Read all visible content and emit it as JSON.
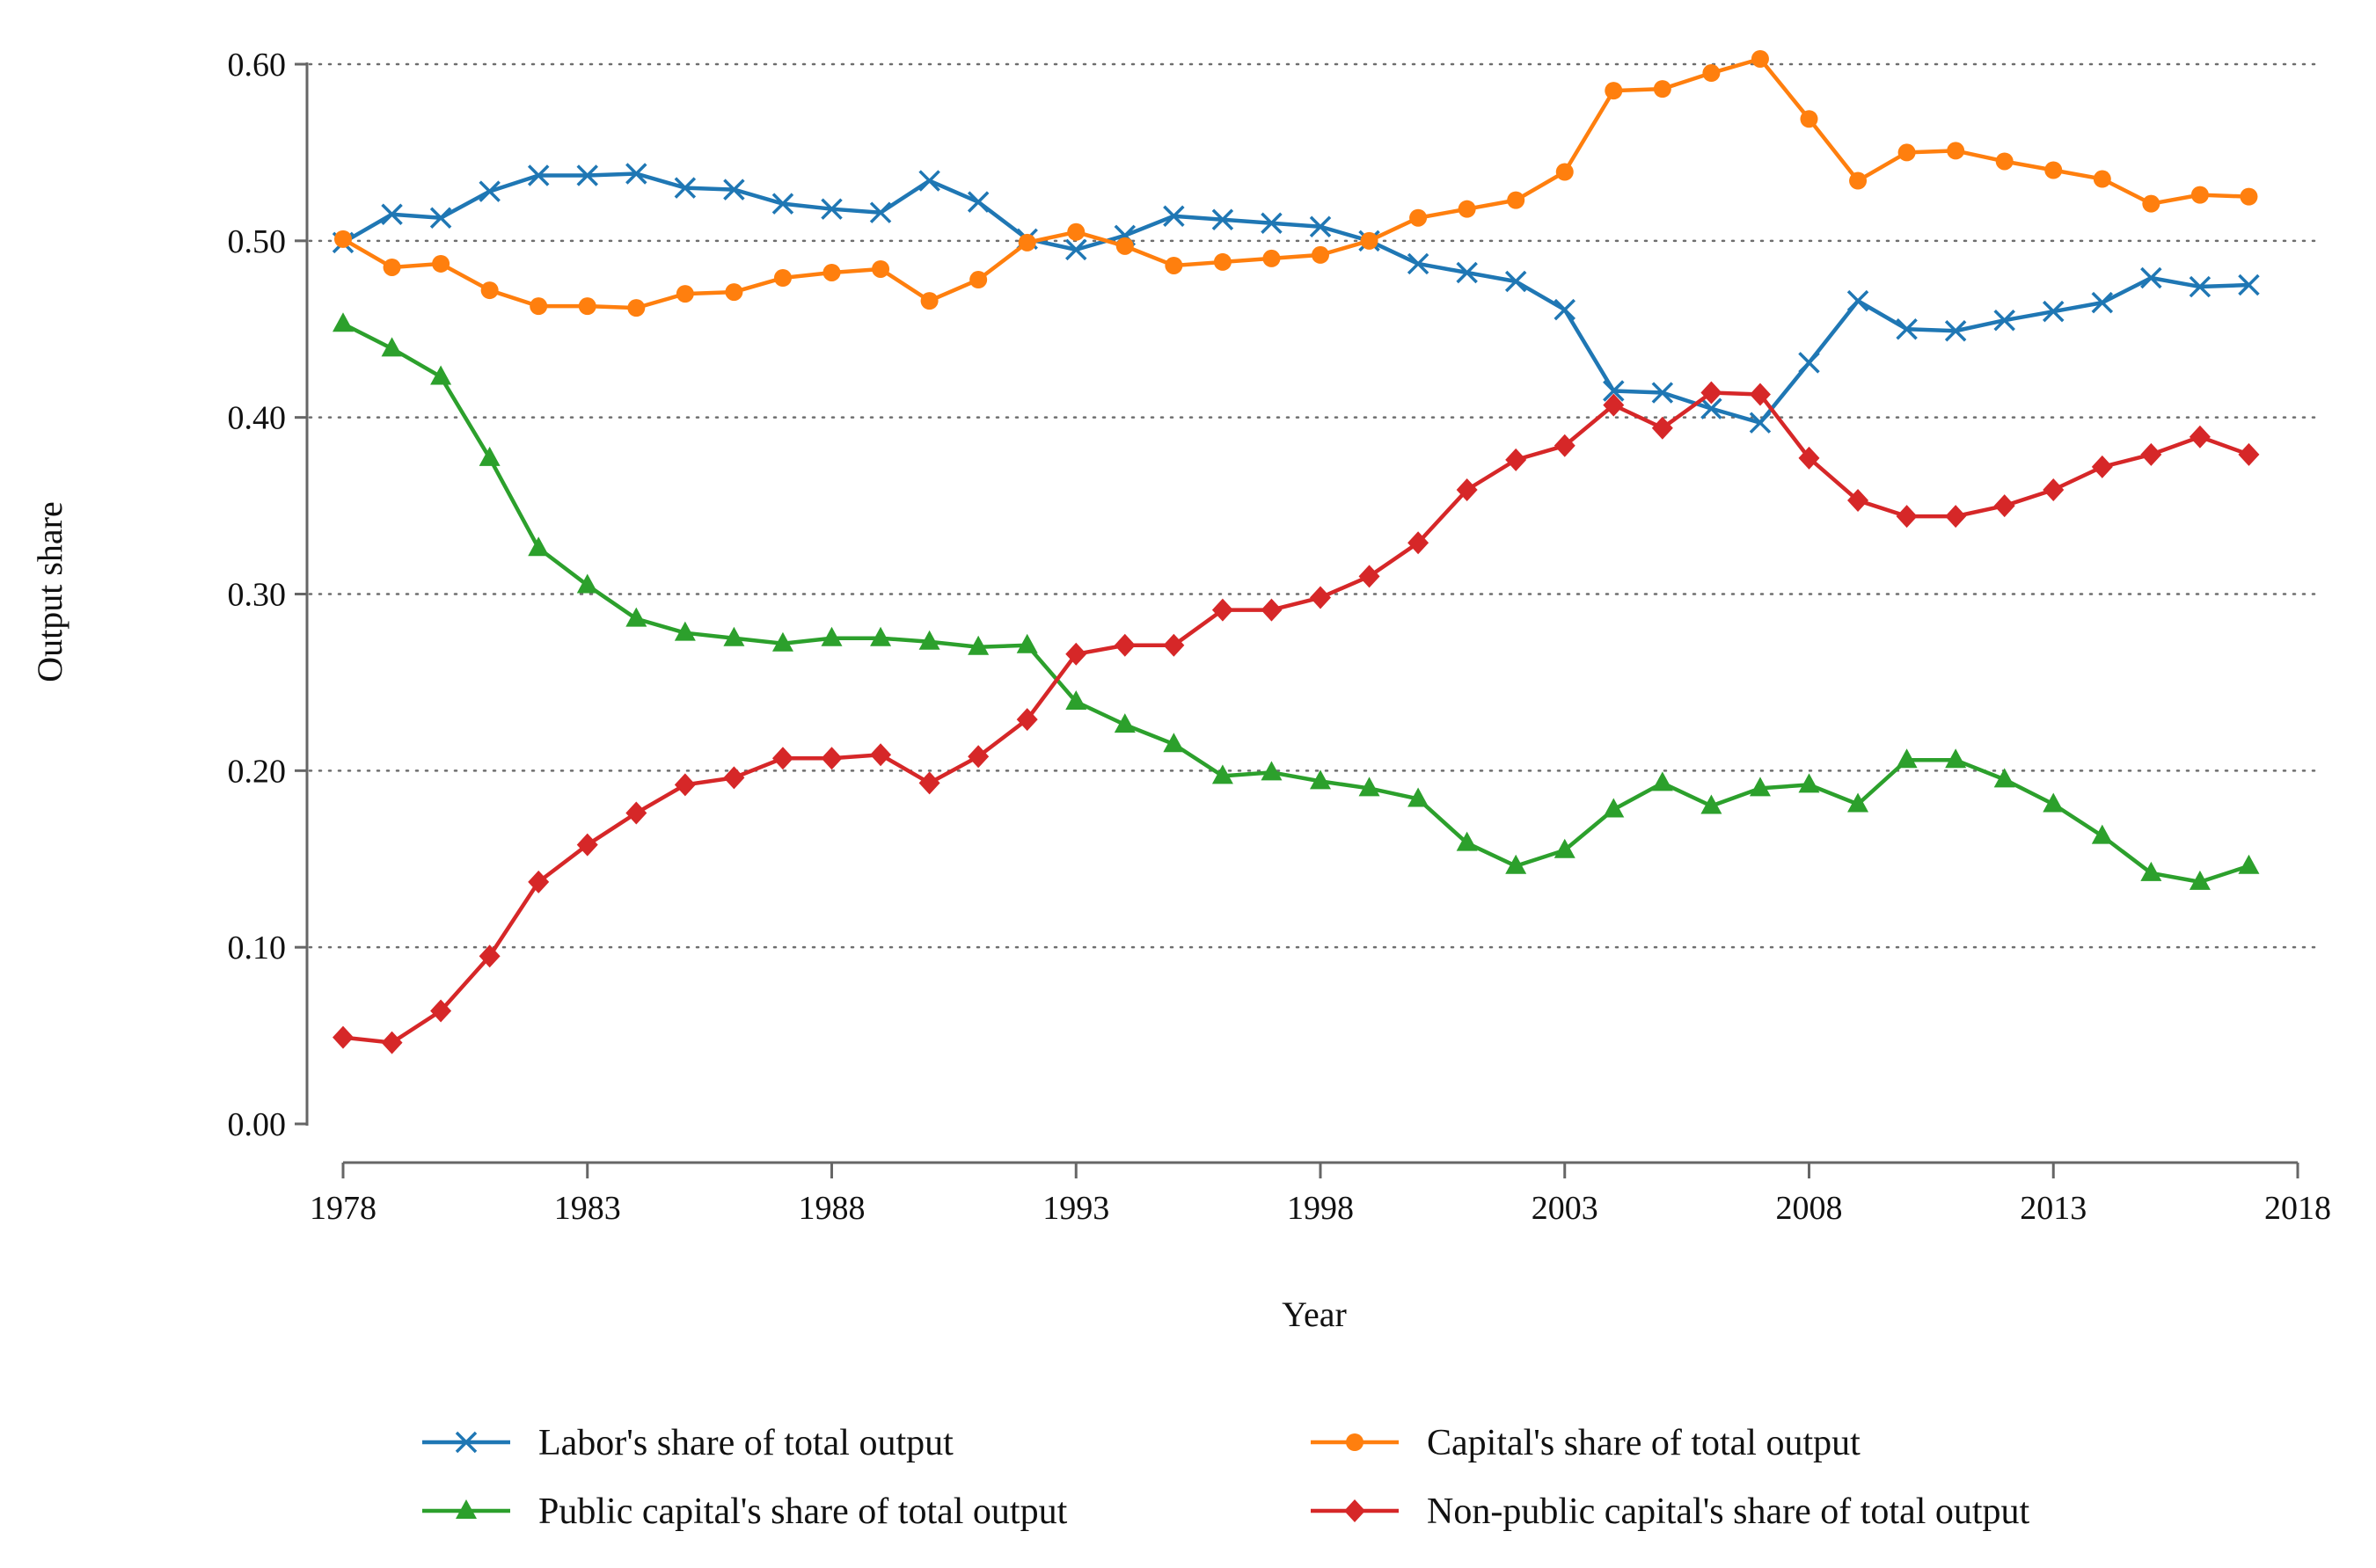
{
  "chart_data": {
    "type": "line",
    "title": "",
    "xlabel": "Year",
    "ylabel": "Output share",
    "xlim": [
      1978,
      2018
    ],
    "ylim": [
      0,
      0.6
    ],
    "xticks": [
      "1978",
      "1983",
      "1988",
      "1993",
      "1998",
      "2003",
      "2008",
      "2013",
      "2018"
    ],
    "yticks": [
      "0.00",
      "0.10",
      "0.20",
      "0.30",
      "0.40",
      "0.50",
      "0.60"
    ],
    "grid": "horizontal dotted",
    "legend_position": "bottom",
    "x": [
      1978,
      1979,
      1980,
      1981,
      1982,
      1983,
      1984,
      1985,
      1986,
      1987,
      1988,
      1989,
      1990,
      1991,
      1992,
      1993,
      1994,
      1995,
      1996,
      1997,
      1998,
      1999,
      2000,
      2001,
      2002,
      2003,
      2004,
      2005,
      2006,
      2007,
      2008,
      2009,
      2010,
      2011,
      2012,
      2013,
      2014,
      2015,
      2016,
      2017
    ],
    "series": [
      {
        "name": "Labor's share of total output",
        "color": "#1f77b4",
        "marker": "x",
        "values": [
          0.499,
          0.515,
          0.513,
          0.528,
          0.537,
          0.537,
          0.538,
          0.53,
          0.529,
          0.521,
          0.518,
          0.516,
          0.534,
          0.522,
          0.501,
          0.495,
          0.503,
          0.514,
          0.512,
          0.51,
          0.508,
          0.5,
          0.487,
          0.482,
          0.477,
          0.461,
          0.415,
          0.414,
          0.405,
          0.397,
          0.431,
          0.466,
          0.45,
          0.449,
          0.455,
          0.46,
          0.465,
          0.479,
          0.474,
          0.475
        ]
      },
      {
        "name": "Capital's share of total output",
        "color": "#ff7f0e",
        "marker": "circle",
        "values": [
          0.501,
          0.485,
          0.487,
          0.472,
          0.463,
          0.463,
          0.462,
          0.47,
          0.471,
          0.479,
          0.482,
          0.484,
          0.466,
          0.478,
          0.499,
          0.505,
          0.497,
          0.486,
          0.488,
          0.49,
          0.492,
          0.5,
          0.513,
          0.518,
          0.523,
          0.539,
          0.585,
          0.586,
          0.595,
          0.603,
          0.569,
          0.534,
          0.55,
          0.551,
          0.545,
          0.54,
          0.535,
          0.521,
          0.526,
          0.525
        ]
      },
      {
        "name": "Public capital's share of total output",
        "color": "#2ca02c",
        "marker": "triangle",
        "values": [
          0.453,
          0.439,
          0.423,
          0.377,
          0.326,
          0.305,
          0.286,
          0.278,
          0.275,
          0.272,
          0.275,
          0.275,
          0.273,
          0.27,
          0.271,
          0.239,
          0.226,
          0.215,
          0.197,
          0.199,
          0.194,
          0.19,
          0.184,
          0.159,
          0.146,
          0.155,
          0.178,
          0.193,
          0.18,
          0.19,
          0.192,
          0.181,
          0.206,
          0.206,
          0.195,
          0.181,
          0.163,
          0.142,
          0.137,
          0.146
        ]
      },
      {
        "name": "Non-public capital's share of total output",
        "color": "#d62728",
        "marker": "diamond",
        "values": [
          0.049,
          0.046,
          0.064,
          0.095,
          0.137,
          0.158,
          0.176,
          0.192,
          0.196,
          0.207,
          0.207,
          0.209,
          0.193,
          0.208,
          0.229,
          0.266,
          0.271,
          0.271,
          0.291,
          0.291,
          0.298,
          0.31,
          0.329,
          0.359,
          0.376,
          0.384,
          0.407,
          0.394,
          0.414,
          0.413,
          0.377,
          0.353,
          0.344,
          0.344,
          0.35,
          0.359,
          0.372,
          0.379,
          0.389,
          0.379
        ]
      }
    ]
  }
}
